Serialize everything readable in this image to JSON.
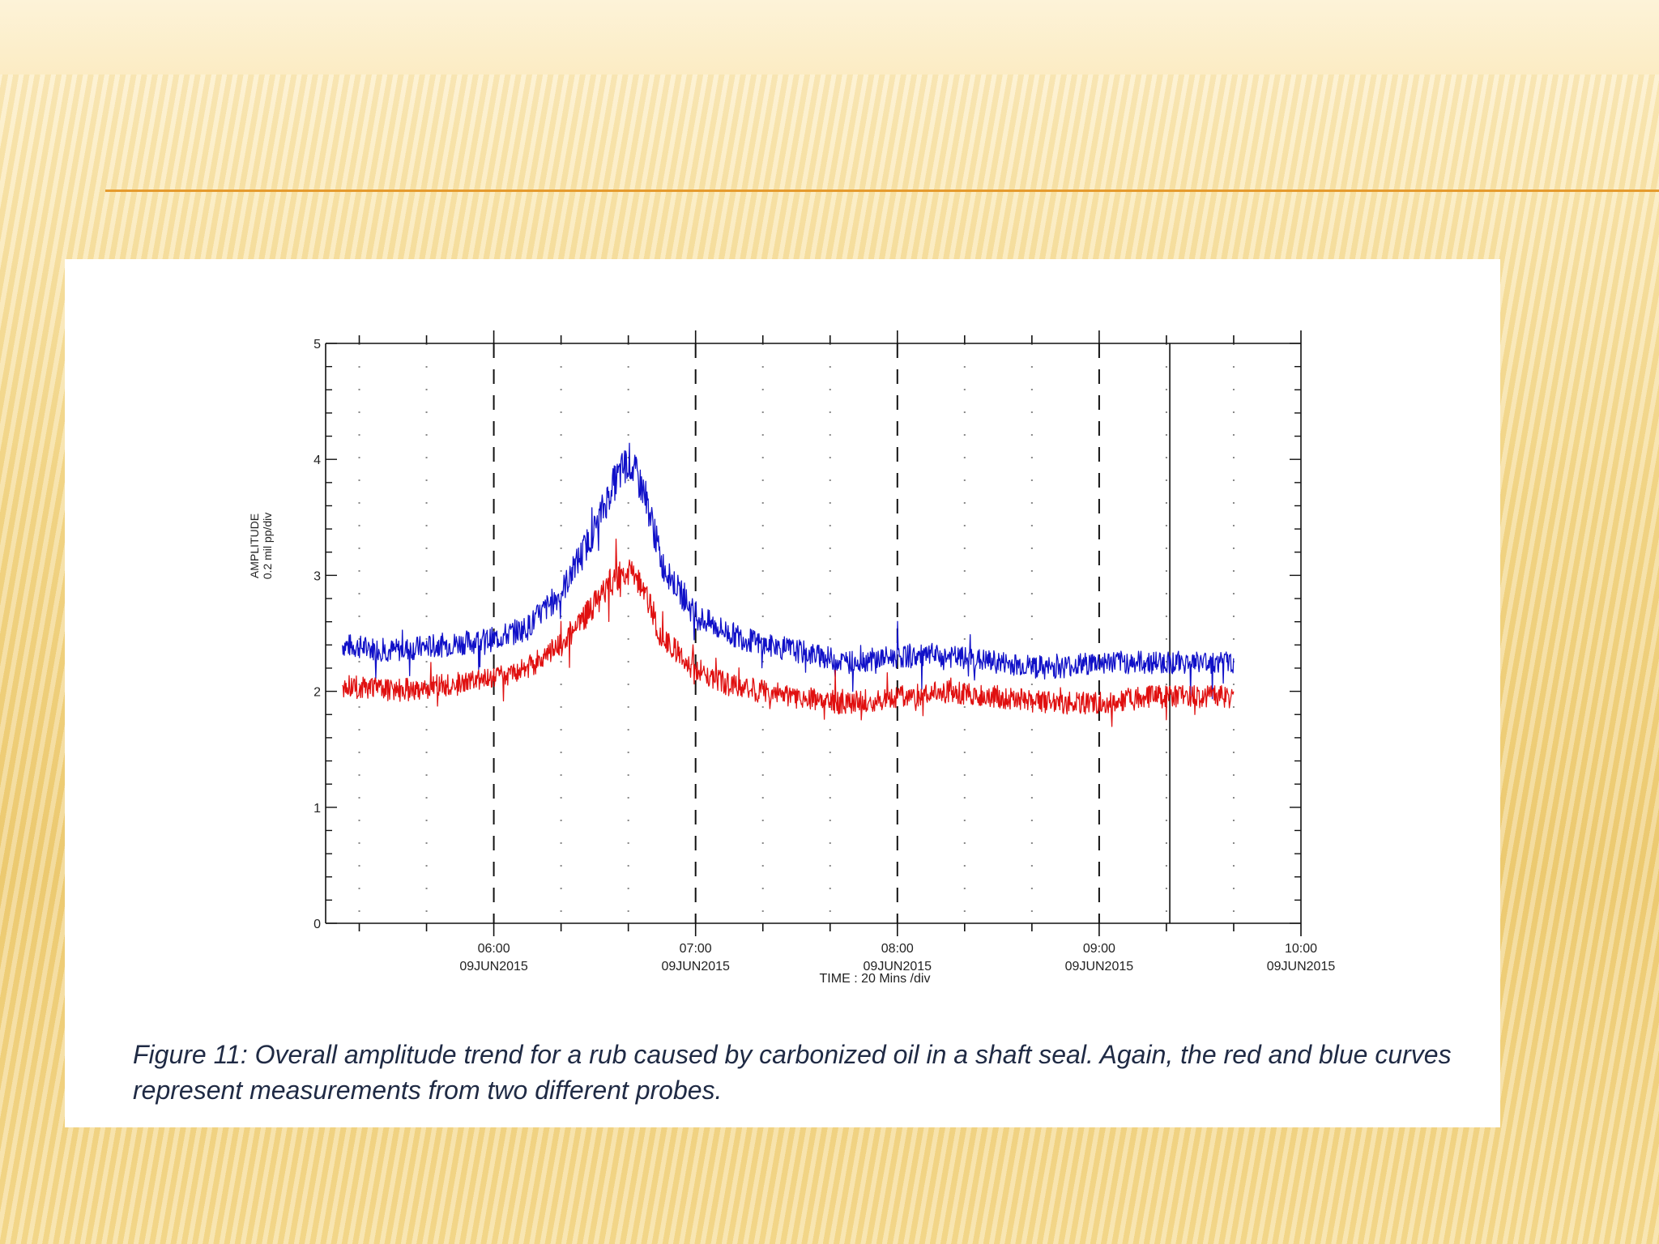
{
  "caption": "Figure 11: Overall amplitude trend for a rub caused by carbonized oil in a shaft seal. Again, the red and blue curves represent measurements from two different probes.",
  "chart_data": {
    "type": "line",
    "xlabel": "TIME : 20 Mins /div",
    "ylabel_line1": "AMPLITUDE",
    "ylabel_line2": "0.2 mil pp/div",
    "xlim": [
      "05:10",
      "10:00"
    ],
    "ylim": [
      0,
      5
    ],
    "y_ticks": [
      "0",
      "1",
      "2",
      "3",
      "4",
      "5"
    ],
    "x_ticks": [
      {
        "time": "06:00",
        "date": "09JUN2015"
      },
      {
        "time": "07:00",
        "date": "09JUN2015"
      },
      {
        "time": "08:00",
        "date": "09JUN2015"
      },
      {
        "time": "09:00",
        "date": "09JUN2015"
      },
      {
        "time": "10:00",
        "date": "09JUN2015"
      }
    ],
    "cursor_time": "09:21",
    "x": [
      "05:15",
      "05:30",
      "05:45",
      "06:00",
      "06:10",
      "06:20",
      "06:30",
      "06:35",
      "06:40",
      "06:45",
      "06:50",
      "07:00",
      "07:10",
      "07:20",
      "07:30",
      "07:45",
      "08:00",
      "08:15",
      "08:30",
      "08:45",
      "09:00",
      "09:15",
      "09:30",
      "09:40"
    ],
    "series": [
      {
        "color": "#1010c8",
        "values": [
          2.4,
          2.35,
          2.4,
          2.45,
          2.55,
          2.85,
          3.4,
          3.75,
          4.0,
          3.7,
          3.1,
          2.65,
          2.5,
          2.4,
          2.35,
          2.25,
          2.3,
          2.3,
          2.25,
          2.2,
          2.25,
          2.25,
          2.25,
          2.25
        ]
      },
      {
        "color": "#e01010",
        "values": [
          2.05,
          2.0,
          2.05,
          2.1,
          2.2,
          2.4,
          2.75,
          2.95,
          3.05,
          2.85,
          2.45,
          2.2,
          2.05,
          2.0,
          1.95,
          1.9,
          1.95,
          2.0,
          1.95,
          1.9,
          1.9,
          1.95,
          1.95,
          1.95
        ]
      }
    ],
    "grid": "dashed vertical lines at each hour; dotted vertical lines at 20 min divisions",
    "legend": "none"
  }
}
